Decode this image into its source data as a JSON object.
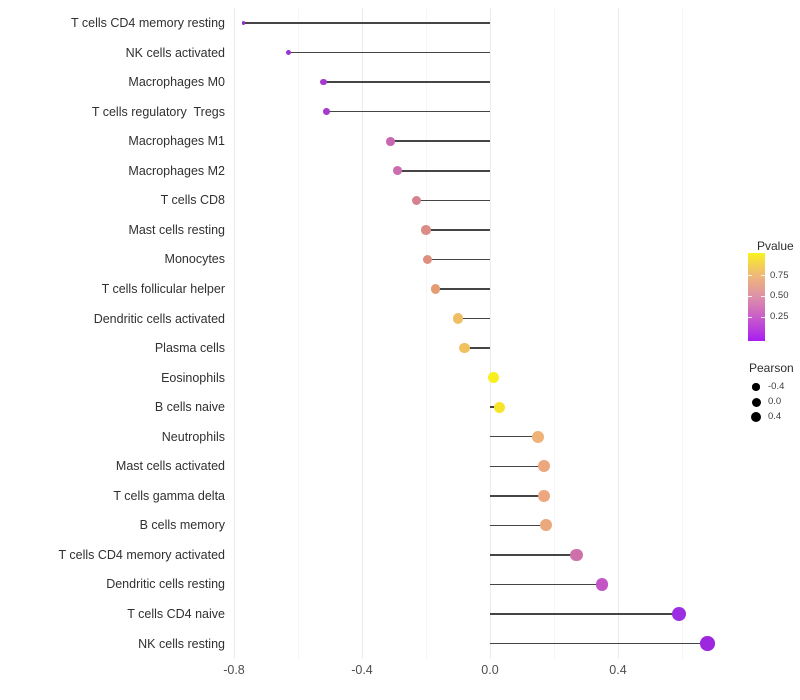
{
  "figure": {
    "background": "#ffffff"
  },
  "x_axis": {
    "ticks": [
      "-0.8",
      "-0.4",
      "0.0",
      "0.4"
    ],
    "tick_values": [
      -0.8,
      -0.4,
      0.0,
      0.4
    ],
    "minor_tick_values": [
      -0.6,
      -0.2,
      0.2,
      0.6
    ]
  },
  "legend_pvalue": {
    "title": "Pvalue",
    "tick_labels": [
      "0.75",
      "0.50",
      "0.25"
    ],
    "gradient_bottom": "#a81cf2",
    "gradient_mid": "#dc8fa9",
    "gradient_top": "#f9f21e"
  },
  "legend_pearson": {
    "title": "Pearson",
    "items": [
      {
        "label": "-0.4",
        "diameter": 7.3
      },
      {
        "label": "0.0",
        "diameter": 9.0
      },
      {
        "label": "0.4",
        "diameter": 10.3
      }
    ]
  },
  "chart_data": {
    "type": "lollipop",
    "orientation": "horizontal",
    "title": "",
    "xlabel": "",
    "ylabel": "",
    "xlim": [
      -0.84,
      0.75
    ],
    "x_ticks": [
      -0.8,
      -0.4,
      0.0,
      0.4
    ],
    "grid": "vertical-only",
    "color_encodes": "Pvalue",
    "size_encodes": "Pearson",
    "legend_position": "right",
    "points": [
      {
        "label": "T cells CD4 memory resting",
        "pearson": -0.77,
        "color": "#9431d3"
      },
      {
        "label": "NK cells activated",
        "pearson": -0.63,
        "color": "#9c35d1"
      },
      {
        "label": "Macrophages M0",
        "pearson": -0.52,
        "color": "#a43ad0"
      },
      {
        "label": "T cells regulatory  Tregs",
        "pearson": -0.51,
        "color": "#a43ad0"
      },
      {
        "label": "Macrophages M1",
        "pearson": -0.31,
        "color": "#c966b3"
      },
      {
        "label": "Macrophages M2",
        "pearson": -0.29,
        "color": "#cc6db0"
      },
      {
        "label": "T cells CD8",
        "pearson": -0.23,
        "color": "#d5818f"
      },
      {
        "label": "Mast cells resting",
        "pearson": -0.2,
        "color": "#dc8c86"
      },
      {
        "label": "Monocytes",
        "pearson": -0.195,
        "color": "#dd9080"
      },
      {
        "label": "T cells follicular helper",
        "pearson": -0.17,
        "color": "#e49c73"
      },
      {
        "label": "Dendritic cells activated",
        "pearson": -0.1,
        "color": "#efbe63"
      },
      {
        "label": "Plasma cells",
        "pearson": -0.08,
        "color": "#f0c25f"
      },
      {
        "label": "Eosinophils",
        "pearson": 0.01,
        "color": "#f9ef1e"
      },
      {
        "label": "B cells naive",
        "pearson": 0.03,
        "color": "#f7e42a"
      },
      {
        "label": "Neutrophils",
        "pearson": 0.15,
        "color": "#f0b377"
      },
      {
        "label": "Mast cells activated",
        "pearson": 0.17,
        "color": "#eca77e"
      },
      {
        "label": "T cells gamma delta",
        "pearson": 0.17,
        "color": "#eca77e"
      },
      {
        "label": "B cells memory",
        "pearson": 0.175,
        "color": "#eca87d"
      },
      {
        "label": "T cells CD4 memory activated",
        "pearson": 0.27,
        "color": "#ce70a9"
      },
      {
        "label": "Dendritic cells resting",
        "pearson": 0.35,
        "color": "#c455c5"
      },
      {
        "label": "T cells CD4 naive",
        "pearson": 0.59,
        "color": "#9c2de3"
      },
      {
        "label": "NK cells resting",
        "pearson": 0.68,
        "color": "#9d26df"
      }
    ]
  }
}
